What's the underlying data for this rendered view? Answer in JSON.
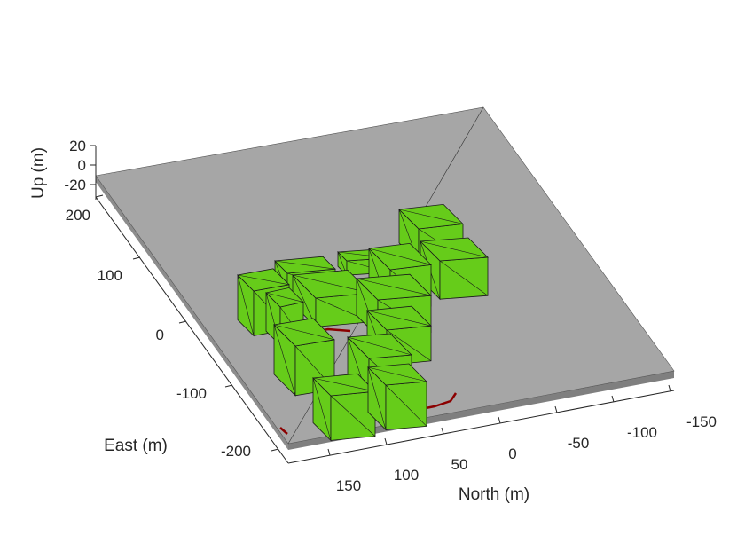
{
  "chart_data": {
    "type": "3d-scene",
    "xlabel": "North (m)",
    "ylabel": "East (m)",
    "zlabel": "Up (m)",
    "x_ticks": [
      "150",
      "100",
      "50",
      "0",
      "-50",
      "-100",
      "-150"
    ],
    "y_ticks": [
      "200",
      "100",
      "0",
      "-100",
      "-200"
    ],
    "z_ticks": [
      "20",
      "0",
      "-20"
    ],
    "colors": {
      "ground": "#a6a6a6",
      "ground_side": "#8c8c8c",
      "building": "#66cc1a",
      "building_edge": "#1a1a1a",
      "trajectory": "#8b0000",
      "beam_colormap": [
        "#0000c8",
        "#0080ff",
        "#00e0ff",
        "#80ff80",
        "#ffff00",
        "#ff8000",
        "#e00000"
      ]
    },
    "buildings": [
      {
        "name": "building-1"
      },
      {
        "name": "building-2"
      },
      {
        "name": "building-3"
      },
      {
        "name": "building-4"
      },
      {
        "name": "building-5"
      },
      {
        "name": "building-6"
      },
      {
        "name": "building-7"
      },
      {
        "name": "building-8"
      },
      {
        "name": "building-9"
      },
      {
        "name": "building-10"
      },
      {
        "name": "building-11"
      },
      {
        "name": "building-12"
      },
      {
        "name": "building-13"
      },
      {
        "name": "building-14"
      }
    ]
  }
}
